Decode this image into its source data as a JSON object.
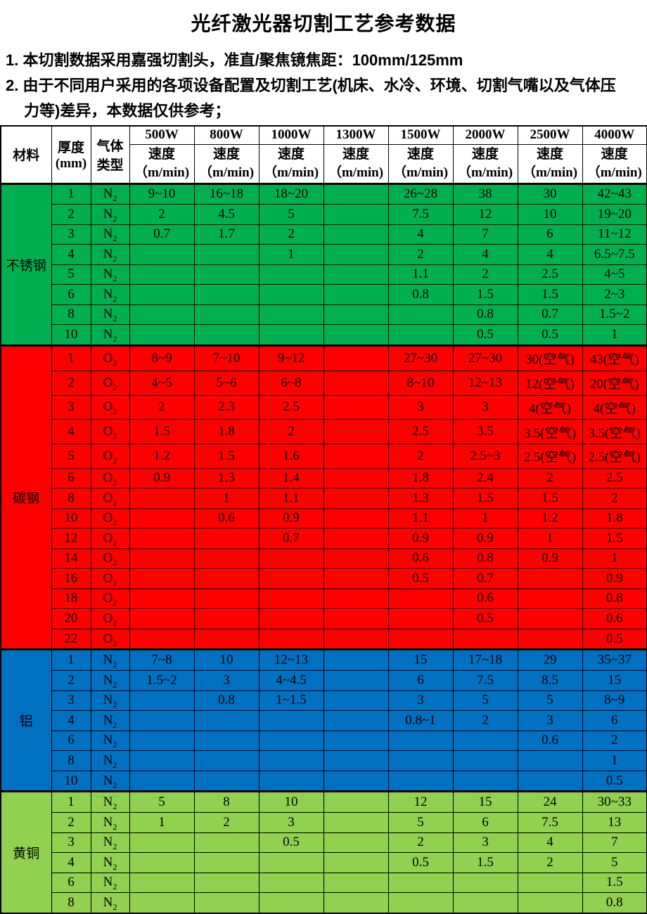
{
  "title": "光纤激光器切割工艺参考数据",
  "notes": {
    "line1": "1. 本切割数据采用嘉强切割头，准直/聚焦镜焦距：100mm/125mm",
    "line2": "2. 由于不同用户采用的各项设备配置及切割工艺(机床、水冷、环境、切割气嘴以及气体压",
    "line3": "力等)差异，本数据仅供参考；"
  },
  "header": {
    "material": "材料",
    "thickness_line1": "厚度",
    "thickness_line2": "(mm)",
    "gas_line1": "气体",
    "gas_line2": "类型",
    "powers": [
      "500W",
      "800W",
      "1000W",
      "1300W",
      "1500W",
      "2000W",
      "2500W",
      "4000W"
    ],
    "speed_label": "速度",
    "speed_unit": "（m/min)"
  },
  "colors": {
    "stainless_steel": "#00B050",
    "carbon_steel": "#FF0000",
    "aluminum": "#0070C0",
    "brass": "#92D050",
    "border": "#000000",
    "header_bg": "#FFFFFF"
  },
  "sections": [
    {
      "material": "不锈钢",
      "color": "#00B050",
      "rows": [
        {
          "thickness": "1",
          "gas": "N2",
          "values": [
            "9~10",
            "16~18",
            "18~20",
            "",
            "26~28",
            "38",
            "30",
            "42~43"
          ]
        },
        {
          "thickness": "2",
          "gas": "N2",
          "values": [
            "2",
            "4.5",
            "5",
            "",
            "7.5",
            "12",
            "10",
            "19~20"
          ]
        },
        {
          "thickness": "3",
          "gas": "N2",
          "values": [
            "0.7",
            "1.7",
            "2",
            "",
            "4",
            "7",
            "6",
            "11~12"
          ]
        },
        {
          "thickness": "4",
          "gas": "N2",
          "values": [
            "",
            "",
            "1",
            "",
            "2",
            "4",
            "4",
            "6.5~7.5"
          ]
        },
        {
          "thickness": "5",
          "gas": "N2",
          "values": [
            "",
            "",
            "",
            "",
            "1.1",
            "2",
            "2.5",
            "4~5"
          ]
        },
        {
          "thickness": "6",
          "gas": "N2",
          "values": [
            "",
            "",
            "",
            "",
            "0.8",
            "1.5",
            "1.5",
            "2~3"
          ]
        },
        {
          "thickness": "8",
          "gas": "N2",
          "values": [
            "",
            "",
            "",
            "",
            "",
            "0.8",
            "0.7",
            "1.5~2"
          ]
        },
        {
          "thickness": "10",
          "gas": "N2",
          "values": [
            "",
            "",
            "",
            "",
            "",
            "0.5",
            "0.5",
            "1"
          ]
        }
      ]
    },
    {
      "material": "碳钢",
      "color": "#FF0000",
      "rows": [
        {
          "thickness": "1",
          "gas": "O2",
          "values": [
            "8~9",
            "7~10",
            "9~12",
            "",
            "27~30",
            "27~30",
            "30(空气)",
            "43(空气)"
          ]
        },
        {
          "thickness": "2",
          "gas": "O2",
          "values": [
            "4~5",
            "5~6",
            "6~8",
            "",
            "8~10",
            "12~13",
            "12(空气)",
            "20(空气)"
          ]
        },
        {
          "thickness": "3",
          "gas": "O2",
          "values": [
            "2",
            "2.3",
            "2.5",
            "",
            "3",
            "3",
            "4(空气)",
            "4(空气)"
          ]
        },
        {
          "thickness": "4",
          "gas": "O2",
          "values": [
            "1.5",
            "1.8",
            "2",
            "",
            "2.5",
            "3.5",
            "3.5(空气)",
            "3.5(空气)"
          ]
        },
        {
          "thickness": "5",
          "gas": "O2",
          "values": [
            "1.2",
            "1.5",
            "1.6",
            "",
            "2",
            "2.5~3",
            "2.5(空气)",
            "2.5(空气)"
          ]
        },
        {
          "thickness": "6",
          "gas": "O2",
          "values": [
            "0.9",
            "1.3",
            "1.4",
            "",
            "1.8",
            "2.4",
            "2",
            "2.5"
          ]
        },
        {
          "thickness": "8",
          "gas": "O2",
          "values": [
            "",
            "1",
            "1.1",
            "",
            "1.3",
            "1.5",
            "1.5",
            "2"
          ]
        },
        {
          "thickness": "10",
          "gas": "O2",
          "values": [
            "",
            "0.6",
            "0.9",
            "",
            "1.1",
            "1",
            "1.2",
            "1.8"
          ]
        },
        {
          "thickness": "12",
          "gas": "O2",
          "values": [
            "",
            "",
            "0.7",
            "",
            "0.9",
            "0.9",
            "1",
            "1.5"
          ]
        },
        {
          "thickness": "14",
          "gas": "O2",
          "values": [
            "",
            "",
            "",
            "",
            "0.6",
            "0.8",
            "0.9",
            "1"
          ]
        },
        {
          "thickness": "16",
          "gas": "O2",
          "values": [
            "",
            "",
            "",
            "",
            "0.5",
            "0.7",
            "",
            "0.9"
          ]
        },
        {
          "thickness": "18",
          "gas": "O2",
          "values": [
            "",
            "",
            "",
            "",
            "",
            "0.6",
            "",
            "0.8"
          ]
        },
        {
          "thickness": "20",
          "gas": "O2",
          "values": [
            "",
            "",
            "",
            "",
            "",
            "0.5",
            "",
            "0.6"
          ]
        },
        {
          "thickness": "22",
          "gas": "O2",
          "values": [
            "",
            "",
            "",
            "",
            "",
            "",
            "",
            "0.5"
          ]
        }
      ]
    },
    {
      "material": "铝",
      "color": "#0070C0",
      "rows": [
        {
          "thickness": "1",
          "gas": "N2",
          "values": [
            "7~8",
            "10",
            "12~13",
            "",
            "15",
            "17~18",
            "29",
            "35~37"
          ]
        },
        {
          "thickness": "2",
          "gas": "N2",
          "values": [
            "1.5~2",
            "3",
            "4~4.5",
            "",
            "6",
            "7.5",
            "8.5",
            "15"
          ]
        },
        {
          "thickness": "3",
          "gas": "N2",
          "values": [
            "",
            "0.8",
            "1~1.5",
            "",
            "3",
            "5",
            "5",
            "8~9"
          ]
        },
        {
          "thickness": "4",
          "gas": "N2",
          "values": [
            "",
            "",
            "",
            "",
            "0.8~1",
            "2",
            "3",
            "6"
          ]
        },
        {
          "thickness": "6",
          "gas": "N2",
          "values": [
            "",
            "",
            "",
            "",
            "",
            "",
            "0.6",
            "2"
          ]
        },
        {
          "thickness": "8",
          "gas": "N2",
          "values": [
            "",
            "",
            "",
            "",
            "",
            "",
            "",
            "1"
          ]
        },
        {
          "thickness": "10",
          "gas": "N2",
          "values": [
            "",
            "",
            "",
            "",
            "",
            "",
            "",
            "0.5"
          ]
        }
      ]
    },
    {
      "material": "黄铜",
      "color": "#92D050",
      "rows": [
        {
          "thickness": "1",
          "gas": "N2",
          "values": [
            "5",
            "8",
            "10",
            "",
            "12",
            "15",
            "24",
            "30~33"
          ]
        },
        {
          "thickness": "2",
          "gas": "N2",
          "values": [
            "1",
            "2",
            "3",
            "",
            "5",
            "6",
            "7.5",
            "13"
          ]
        },
        {
          "thickness": "3",
          "gas": "N2",
          "values": [
            "",
            "",
            "0.5",
            "",
            "2",
            "3",
            "4",
            "7"
          ]
        },
        {
          "thickness": "4",
          "gas": "N2",
          "values": [
            "",
            "",
            "",
            "",
            "0.5",
            "1.5",
            "2",
            "5"
          ]
        },
        {
          "thickness": "6",
          "gas": "N2",
          "values": [
            "",
            "",
            "",
            "",
            "",
            "",
            "",
            "1.5"
          ]
        },
        {
          "thickness": "8",
          "gas": "N2",
          "values": [
            "",
            "",
            "",
            "",
            "",
            "",
            "",
            "0.8"
          ]
        }
      ]
    }
  ]
}
